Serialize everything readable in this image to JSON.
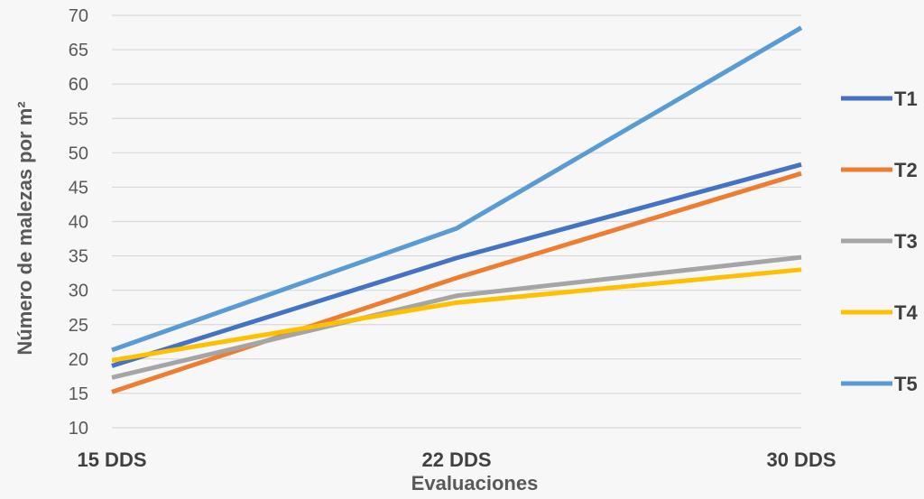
{
  "chart_data": {
    "type": "line",
    "xlabel": "Evaluaciones",
    "ylabel": "Número de malezas por m²",
    "categories": [
      "15 DDS",
      "22 DDS",
      "30 DDS"
    ],
    "ylim": [
      10,
      70
    ],
    "yticks": [
      10,
      15,
      20,
      25,
      30,
      35,
      40,
      45,
      50,
      55,
      60,
      65,
      70
    ],
    "grid": true,
    "legend_position": "right",
    "series": [
      {
        "name": "T1",
        "color": "#4472c4",
        "values": [
          19,
          34.7,
          48.3
        ]
      },
      {
        "name": "T2",
        "color": "#ed7d31",
        "values": [
          15.2,
          31.8,
          47
        ]
      },
      {
        "name": "T3",
        "color": "#a5a5a5",
        "values": [
          17.3,
          29.2,
          34.8
        ]
      },
      {
        "name": "T4",
        "color": "#ffc000",
        "values": [
          19.8,
          28.2,
          33
        ]
      },
      {
        "name": "T5",
        "color": "#5b9bd5",
        "values": [
          21.3,
          39,
          68.2
        ]
      }
    ]
  }
}
